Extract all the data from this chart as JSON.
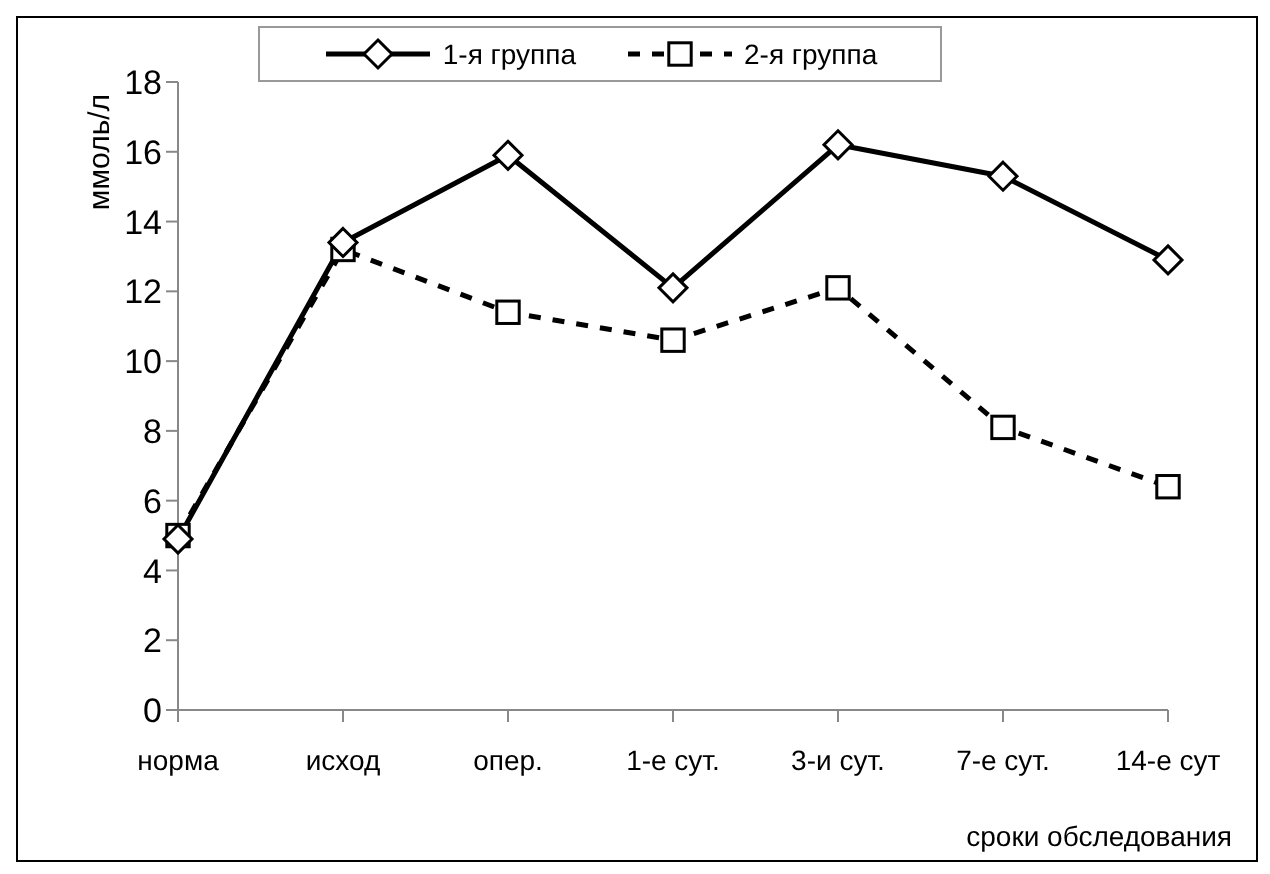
{
  "chart_data": {
    "type": "line",
    "ylabel": "ммоль/л",
    "xlabel": "сроки обследования",
    "categories": [
      "норма",
      "исход",
      "опер.",
      "1-е сут.",
      "3-и сут.",
      "7-е сут.",
      "14-е сут"
    ],
    "series": [
      {
        "name": "1-я группа",
        "color": "#000000",
        "values": [
          4.9,
          13.4,
          15.9,
          12.1,
          16.2,
          15.3,
          12.9
        ],
        "marker": "diamond",
        "line_style": "solid"
      },
      {
        "name": "2-я группа",
        "color": "#000000",
        "values": [
          5.0,
          13.2,
          11.4,
          10.6,
          12.1,
          8.1,
          6.4
        ],
        "marker": "square",
        "line_style": "dashed"
      }
    ],
    "ylim": [
      0,
      18
    ],
    "yticks": [
      0,
      2,
      4,
      6,
      8,
      10,
      12,
      14,
      16,
      18
    ],
    "grid": false,
    "legend": "top"
  }
}
